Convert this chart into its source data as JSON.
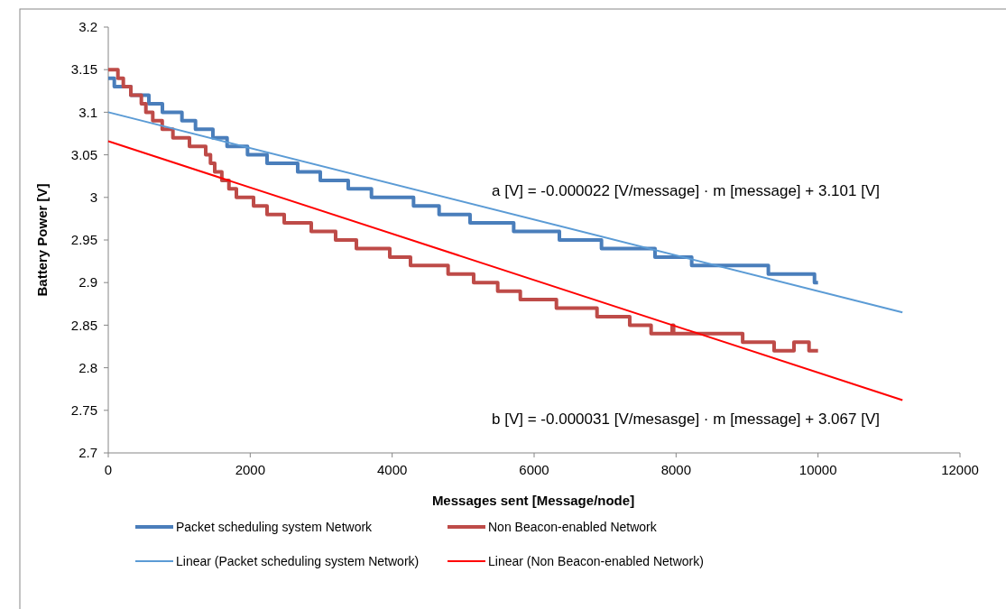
{
  "chart_data": {
    "type": "step",
    "xlabel": "Messages sent [Message/node]",
    "ylabel": "Battery Power [V]",
    "xlim": [
      0,
      12000
    ],
    "xticks": [
      0,
      2000,
      4000,
      6000,
      8000,
      10000,
      12000
    ],
    "ylim": [
      2.7,
      3.2
    ],
    "yticks": [
      2.7,
      2.75,
      2.8,
      2.85,
      2.9,
      2.95,
      3,
      3.05,
      3.1,
      3.15,
      3.2
    ],
    "grid": false,
    "legend": "bottom",
    "line_style": "solid",
    "marker": "none",
    "annotations": [
      "a [V] = -0.000022 [V/message] · m [message] + 3.101 [V]",
      "b [V] = -0.000031 [V/mesasge] · m [message]  + 3.067 [V]"
    ],
    "series": [
      {
        "name": "Packet scheduling system Network",
        "color": "#4a7ebb",
        "x": [
          0,
          85,
          318,
          572,
          763,
          1038,
          1229,
          1474,
          1674,
          1962,
          2237,
          2669,
          2987,
          3381,
          3708,
          4301,
          4661,
          5097,
          5712,
          6356,
          6949,
          7703,
          8220,
          9300,
          9950,
          10000
        ],
        "values": [
          3.14,
          3.13,
          3.12,
          3.11,
          3.1,
          3.09,
          3.08,
          3.07,
          3.06,
          3.05,
          3.04,
          3.03,
          3.02,
          3.01,
          3,
          2.99,
          2.98,
          2.97,
          2.96,
          2.95,
          2.94,
          2.93,
          2.92,
          2.91,
          2.9,
          2.9
        ]
      },
      {
        "name": "Non Beacon-enabled Network",
        "color": "#be4b48",
        "x": [
          0,
          136,
          212,
          318,
          466,
          530,
          627,
          760,
          911,
          1144,
          1373,
          1440,
          1500,
          1600,
          1700,
          1805,
          2047,
          2237,
          2479,
          2860,
          3203,
          3496,
          3966,
          4258,
          4788,
          5148,
          5487,
          5805,
          6314,
          6886,
          7347,
          7648,
          7945,
          7965,
          8938,
          9381,
          9661,
          9873,
          10000
        ],
        "values": [
          3.15,
          3.14,
          3.13,
          3.12,
          3.11,
          3.1,
          3.09,
          3.08,
          3.07,
          3.06,
          3.05,
          3.04,
          3.03,
          3.02,
          3.01,
          3,
          2.99,
          2.98,
          2.97,
          2.96,
          2.95,
          2.94,
          2.93,
          2.92,
          2.91,
          2.9,
          2.89,
          2.88,
          2.87,
          2.86,
          2.85,
          2.84,
          2.85,
          2.84,
          2.83,
          2.82,
          2.83,
          2.82,
          2.82
        ]
      },
      {
        "name": "Linear (Packet scheduling system Network)",
        "color": "#5b9bd5",
        "type": "line",
        "x": [
          0,
          11190
        ],
        "values": [
          3.1,
          2.865
        ]
      },
      {
        "name": "Linear (Non Beacon-enabled Network)",
        "color": "#ff0000",
        "type": "line",
        "x": [
          0,
          11190
        ],
        "values": [
          3.066,
          2.762
        ]
      }
    ]
  }
}
